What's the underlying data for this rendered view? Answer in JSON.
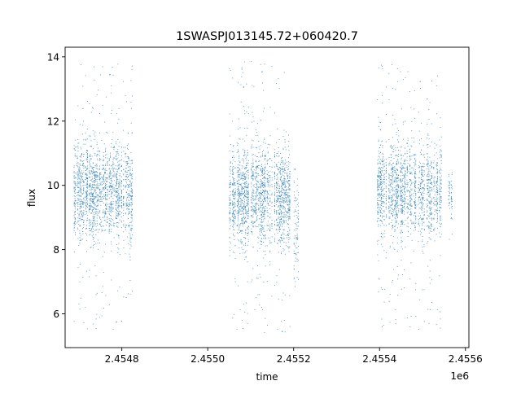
{
  "chart_data": {
    "type": "scatter",
    "title": "1SWASPJ013145.72+060420.7",
    "xlabel": "time",
    "ylabel": "flux",
    "x_offset_label": "1e6",
    "xlim": [
      2454668,
      2455608
    ],
    "ylim": [
      4.95,
      14.3
    ],
    "x_ticks": [
      2454800,
      2455000,
      2455200,
      2455400,
      2455600
    ],
    "x_tick_labels": [
      "2.4548",
      "2.4550",
      "2.4552",
      "2.4554",
      "2.4556"
    ],
    "y_ticks": [
      6,
      8,
      10,
      12,
      14
    ],
    "y_tick_labels": [
      "6",
      "8",
      "10",
      "12",
      "14"
    ],
    "grid": false,
    "legend": false,
    "series_color": "#1f77b4",
    "clusters": [
      {
        "x_range": [
          2454688,
          2454825
        ],
        "flux_core": [
          8.6,
          11.1
        ],
        "flux_range": [
          5.5,
          13.8
        ]
      },
      {
        "x_range": [
          2455050,
          2455192
        ],
        "flux_core": [
          8.4,
          11.0
        ],
        "flux_range": [
          5.4,
          13.9
        ]
      },
      {
        "x_range": [
          2455200,
          2455212
        ],
        "flux_core": [
          7.0,
          10.3
        ],
        "flux_range": [
          6.8,
          10.5
        ]
      },
      {
        "x_range": [
          2455390,
          2455545
        ],
        "flux_core": [
          8.6,
          11.1
        ],
        "flux_range": [
          5.4,
          13.8
        ]
      },
      {
        "x_range": [
          2455560,
          2455570
        ],
        "flux_core": [
          8.9,
          10.3
        ],
        "flux_range": [
          7.8,
          10.5
        ]
      }
    ]
  }
}
